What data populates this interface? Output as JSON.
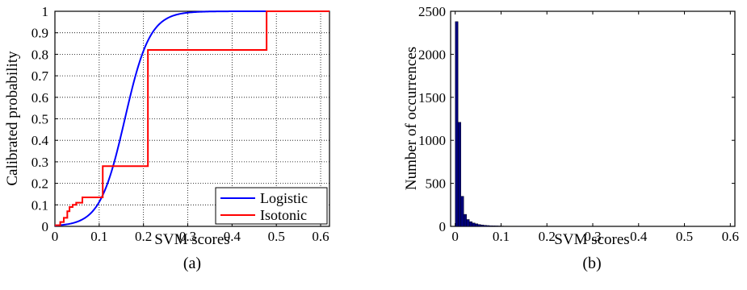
{
  "chart_data": [
    {
      "type": "line",
      "panel_label": "(a)",
      "xlabel": "SVM scores",
      "ylabel": "Calibrated probability",
      "xlim": [
        0,
        0.62
      ],
      "ylim": [
        0,
        1
      ],
      "xticks": [
        0,
        0.1,
        0.2,
        0.3,
        0.4,
        0.5,
        0.6
      ],
      "xtick_labels": [
        "0",
        "0.1",
        "0.2",
        "0.3",
        "0.4",
        "0.5",
        "0.6"
      ],
      "yticks": [
        0,
        0.1,
        0.2,
        0.3,
        0.4,
        0.5,
        0.6,
        0.7,
        0.8,
        0.9,
        1
      ],
      "ytick_labels": [
        "0",
        "0.1",
        "0.2",
        "0.3",
        "0.4",
        "0.5",
        "0.6",
        "0.7",
        "0.8",
        "0.9",
        "1"
      ],
      "grid": true,
      "legend_position": "bottom-right",
      "series": [
        {
          "name": "Logistic",
          "color": "#0000ff",
          "kind": "sigmoid",
          "midpoint": 0.158,
          "scale": 0.0282
        },
        {
          "name": "Isotonic",
          "color": "#ff0000",
          "kind": "step",
          "points": [
            [
              0,
              0.005
            ],
            [
              0.012,
              0.005
            ],
            [
              0.012,
              0.02
            ],
            [
              0.02,
              0.02
            ],
            [
              0.02,
              0.04
            ],
            [
              0.028,
              0.04
            ],
            [
              0.028,
              0.07
            ],
            [
              0.033,
              0.07
            ],
            [
              0.033,
              0.09
            ],
            [
              0.04,
              0.09
            ],
            [
              0.04,
              0.1
            ],
            [
              0.048,
              0.1
            ],
            [
              0.048,
              0.11
            ],
            [
              0.062,
              0.11
            ],
            [
              0.062,
              0.135
            ],
            [
              0.108,
              0.135
            ],
            [
              0.108,
              0.28
            ],
            [
              0.21,
              0.28
            ],
            [
              0.21,
              0.82
            ],
            [
              0.478,
              0.82
            ],
            [
              0.478,
              1.0
            ],
            [
              0.62,
              1.0
            ]
          ]
        }
      ]
    },
    {
      "type": "bar",
      "panel_label": "(b)",
      "xlabel": "SVM scores",
      "ylabel": "Number of occurrences",
      "xlim": [
        -0.01,
        0.61
      ],
      "ylim": [
        0,
        2500
      ],
      "xticks": [
        0,
        0.1,
        0.2,
        0.3,
        0.4,
        0.5,
        0.6
      ],
      "xtick_labels": [
        "0",
        "0.1",
        "0.2",
        "0.3",
        "0.4",
        "0.5",
        "0.6"
      ],
      "yticks": [
        0,
        500,
        1000,
        1500,
        2000,
        2500
      ],
      "ytick_labels": [
        "0",
        "500",
        "1000",
        "1500",
        "2000",
        "2500"
      ],
      "grid": false,
      "bar_color": "#00007a",
      "bin_width": 0.0062,
      "bins": [
        0,
        0.0062,
        0.0124,
        0.0186,
        0.0248,
        0.031,
        0.0372,
        0.0434,
        0.0496,
        0.0558,
        0.062,
        0.0682,
        0.0744,
        0.0806,
        0.0868,
        0.093,
        0.0992,
        0.1054,
        0.1116,
        0.1178,
        0.124,
        0.1302,
        0.1364,
        0.1426,
        0.1488
      ],
      "values": [
        2380,
        1210,
        350,
        140,
        80,
        55,
        40,
        30,
        22,
        17,
        13,
        10,
        8,
        7,
        6,
        5,
        4,
        3,
        3,
        2,
        2,
        2,
        1,
        1,
        1
      ]
    }
  ]
}
